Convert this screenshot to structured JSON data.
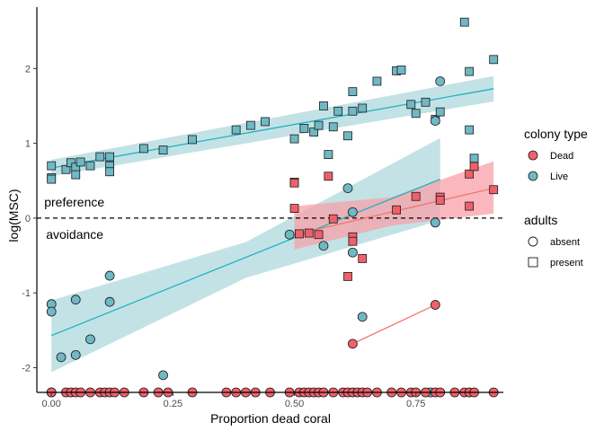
{
  "chart_data": {
    "type": "scatter",
    "xlabel": "Proportion dead coral",
    "ylabel": "log(MSC)",
    "xlim": [
      -0.03,
      0.93
    ],
    "ylim": [
      -2.33,
      2.82
    ],
    "xticks": [
      0.0,
      0.25,
      0.5,
      0.75
    ],
    "xtick_labels": [
      "0.00",
      "0.25",
      "0.50",
      "0.75"
    ],
    "yticks": [
      -2,
      -1,
      0,
      1,
      2
    ],
    "ytick_labels": [
      "-2",
      "-1",
      "0",
      "1",
      "2"
    ],
    "grid": false,
    "reference_line": {
      "y": 0,
      "style": "dashed"
    },
    "annotations": [
      {
        "text": "preference",
        "x": 0.0,
        "y": 0.18
      },
      {
        "text": "avoidance",
        "x": 0.0,
        "y": -0.22
      }
    ],
    "colors": {
      "Dead": "#f0606a",
      "Live": "#6fb8c4",
      "Dead_line": "#f2766b",
      "Live_line": "#1fb2c2",
      "Dead_band": "#f8a0a8",
      "Live_band": "#a9d5db"
    },
    "legend": {
      "position": "right",
      "colony_title": "colony type",
      "colony_items": [
        "Dead",
        "Live"
      ],
      "adults_title": "adults",
      "adults_items": [
        "absent",
        "present"
      ]
    },
    "series": [
      {
        "name": "Live",
        "shape": "square",
        "points": [
          [
            0.0,
            0.7
          ],
          [
            0.0,
            0.54
          ],
          [
            0.0,
            0.52
          ],
          [
            0.03,
            0.65
          ],
          [
            0.04,
            0.74
          ],
          [
            0.05,
            0.68
          ],
          [
            0.05,
            0.58
          ],
          [
            0.06,
            0.75
          ],
          [
            0.08,
            0.7
          ],
          [
            0.1,
            0.82
          ],
          [
            0.12,
            0.82
          ],
          [
            0.12,
            0.7
          ],
          [
            0.12,
            0.62
          ],
          [
            0.19,
            0.93
          ],
          [
            0.23,
            0.91
          ],
          [
            0.29,
            1.05
          ],
          [
            0.38,
            1.18
          ],
          [
            0.41,
            1.24
          ],
          [
            0.44,
            1.29
          ],
          [
            0.5,
            1.06
          ],
          [
            0.52,
            1.2
          ],
          [
            0.54,
            1.15
          ],
          [
            0.55,
            1.24
          ],
          [
            0.56,
            1.5
          ],
          [
            0.57,
            0.85
          ],
          [
            0.58,
            1.22
          ],
          [
            0.59,
            1.43
          ],
          [
            0.61,
            1.1
          ],
          [
            0.62,
            1.43
          ],
          [
            0.62,
            1.69
          ],
          [
            0.64,
            1.47
          ],
          [
            0.67,
            1.83
          ],
          [
            0.71,
            1.97
          ],
          [
            0.72,
            1.98
          ],
          [
            0.74,
            1.52
          ],
          [
            0.75,
            1.4
          ],
          [
            0.77,
            1.55
          ],
          [
            0.79,
            1.32
          ],
          [
            0.8,
            1.42
          ],
          [
            0.85,
            2.62
          ],
          [
            0.86,
            1.96
          ],
          [
            0.86,
            1.18
          ],
          [
            0.87,
            0.8
          ],
          [
            0.91,
            2.12
          ]
        ]
      },
      {
        "name": "Live",
        "shape": "circle",
        "points": [
          [
            0.0,
            -1.15
          ],
          [
            0.0,
            -1.25
          ],
          [
            0.0,
            -2.33
          ],
          [
            0.02,
            -1.86
          ],
          [
            0.05,
            -1.09
          ],
          [
            0.05,
            -1.83
          ],
          [
            0.08,
            -1.62
          ],
          [
            0.12,
            -0.77
          ],
          [
            0.12,
            -1.12
          ],
          [
            0.23,
            -2.1
          ],
          [
            0.49,
            -0.22
          ],
          [
            0.56,
            -0.37
          ],
          [
            0.61,
            0.4
          ],
          [
            0.62,
            0.08
          ],
          [
            0.62,
            -0.46
          ],
          [
            0.64,
            -1.32
          ],
          [
            0.79,
            1.3
          ],
          [
            0.79,
            -0.06
          ],
          [
            0.8,
            1.83
          ],
          [
            0.78,
            -2.33
          ]
        ]
      },
      {
        "name": "Dead",
        "shape": "square",
        "points": [
          [
            0.5,
            0.48
          ],
          [
            0.5,
            0.47
          ],
          [
            0.5,
            0.13
          ],
          [
            0.51,
            -0.21
          ],
          [
            0.53,
            -0.2
          ],
          [
            0.55,
            -0.22
          ],
          [
            0.57,
            0.56
          ],
          [
            0.58,
            -0.01
          ],
          [
            0.61,
            -0.78
          ],
          [
            0.62,
            -0.25
          ],
          [
            0.62,
            -0.31
          ],
          [
            0.64,
            -0.54
          ],
          [
            0.71,
            0.11
          ],
          [
            0.75,
            0.29
          ],
          [
            0.8,
            0.28
          ],
          [
            0.8,
            0.24
          ],
          [
            0.86,
            0.16
          ],
          [
            0.86,
            0.59
          ],
          [
            0.87,
            0.69
          ],
          [
            0.91,
            0.38
          ]
        ]
      },
      {
        "name": "Dead",
        "shape": "circle",
        "points": [
          [
            0.0,
            -2.33
          ],
          [
            0.03,
            -2.33
          ],
          [
            0.04,
            -2.33
          ],
          [
            0.05,
            -2.33
          ],
          [
            0.06,
            -2.33
          ],
          [
            0.08,
            -2.33
          ],
          [
            0.1,
            -2.33
          ],
          [
            0.11,
            -2.33
          ],
          [
            0.12,
            -2.33
          ],
          [
            0.13,
            -2.33
          ],
          [
            0.15,
            -2.33
          ],
          [
            0.19,
            -2.33
          ],
          [
            0.22,
            -2.33
          ],
          [
            0.24,
            -2.33
          ],
          [
            0.29,
            -2.33
          ],
          [
            0.36,
            -2.33
          ],
          [
            0.38,
            -2.33
          ],
          [
            0.4,
            -2.33
          ],
          [
            0.42,
            -2.33
          ],
          [
            0.45,
            -2.33
          ],
          [
            0.49,
            -2.33
          ],
          [
            0.51,
            -2.33
          ],
          [
            0.52,
            -2.33
          ],
          [
            0.53,
            -2.33
          ],
          [
            0.54,
            -2.33
          ],
          [
            0.55,
            -2.33
          ],
          [
            0.56,
            -2.33
          ],
          [
            0.58,
            -2.33
          ],
          [
            0.6,
            -2.33
          ],
          [
            0.61,
            -2.33
          ],
          [
            0.62,
            -2.33
          ],
          [
            0.63,
            -2.33
          ],
          [
            0.64,
            -2.33
          ],
          [
            0.65,
            -2.33
          ],
          [
            0.67,
            -2.33
          ],
          [
            0.7,
            -2.33
          ],
          [
            0.72,
            -2.33
          ],
          [
            0.74,
            -2.33
          ],
          [
            0.75,
            -2.33
          ],
          [
            0.77,
            -2.33
          ],
          [
            0.79,
            -2.33
          ],
          [
            0.8,
            -2.33
          ],
          [
            0.83,
            -2.33
          ],
          [
            0.85,
            -2.33
          ],
          [
            0.86,
            -2.33
          ],
          [
            0.87,
            -2.33
          ],
          [
            0.91,
            -2.33
          ],
          [
            0.79,
            -1.16
          ],
          [
            0.62,
            -1.68
          ]
        ]
      }
    ],
    "fits": [
      {
        "name": "Live",
        "adults": "present",
        "line": [
          [
            0.0,
            0.67
          ],
          [
            0.91,
            1.73
          ]
        ],
        "band_upper": [
          [
            0.0,
            0.78
          ],
          [
            0.91,
            1.9
          ]
        ],
        "band_lower": [
          [
            0.0,
            0.56
          ],
          [
            0.91,
            1.56
          ]
        ]
      },
      {
        "name": "Live",
        "adults": "absent",
        "line": [
          [
            0.0,
            -1.57
          ],
          [
            0.8,
            0.52
          ]
        ],
        "band_upper": [
          [
            0.0,
            -1.1
          ],
          [
            0.4,
            -0.32
          ],
          [
            0.8,
            1.07
          ]
        ],
        "band_lower": [
          [
            0.0,
            -2.06
          ],
          [
            0.4,
            -0.8
          ],
          [
            0.8,
            -0.03
          ]
        ]
      },
      {
        "name": "Dead",
        "adults": "present",
        "line": [
          [
            0.5,
            -0.22
          ],
          [
            0.91,
            0.4
          ]
        ],
        "band_upper": [
          [
            0.5,
            0.16
          ],
          [
            0.7,
            0.28
          ],
          [
            0.91,
            0.76
          ]
        ],
        "band_lower": [
          [
            0.5,
            -0.42
          ],
          [
            0.7,
            -0.1
          ],
          [
            0.91,
            0.06
          ]
        ]
      },
      {
        "name": "Dead",
        "adults": "absent",
        "line": [
          [
            0.62,
            -1.68
          ],
          [
            0.79,
            -1.16
          ]
        ]
      }
    ]
  }
}
